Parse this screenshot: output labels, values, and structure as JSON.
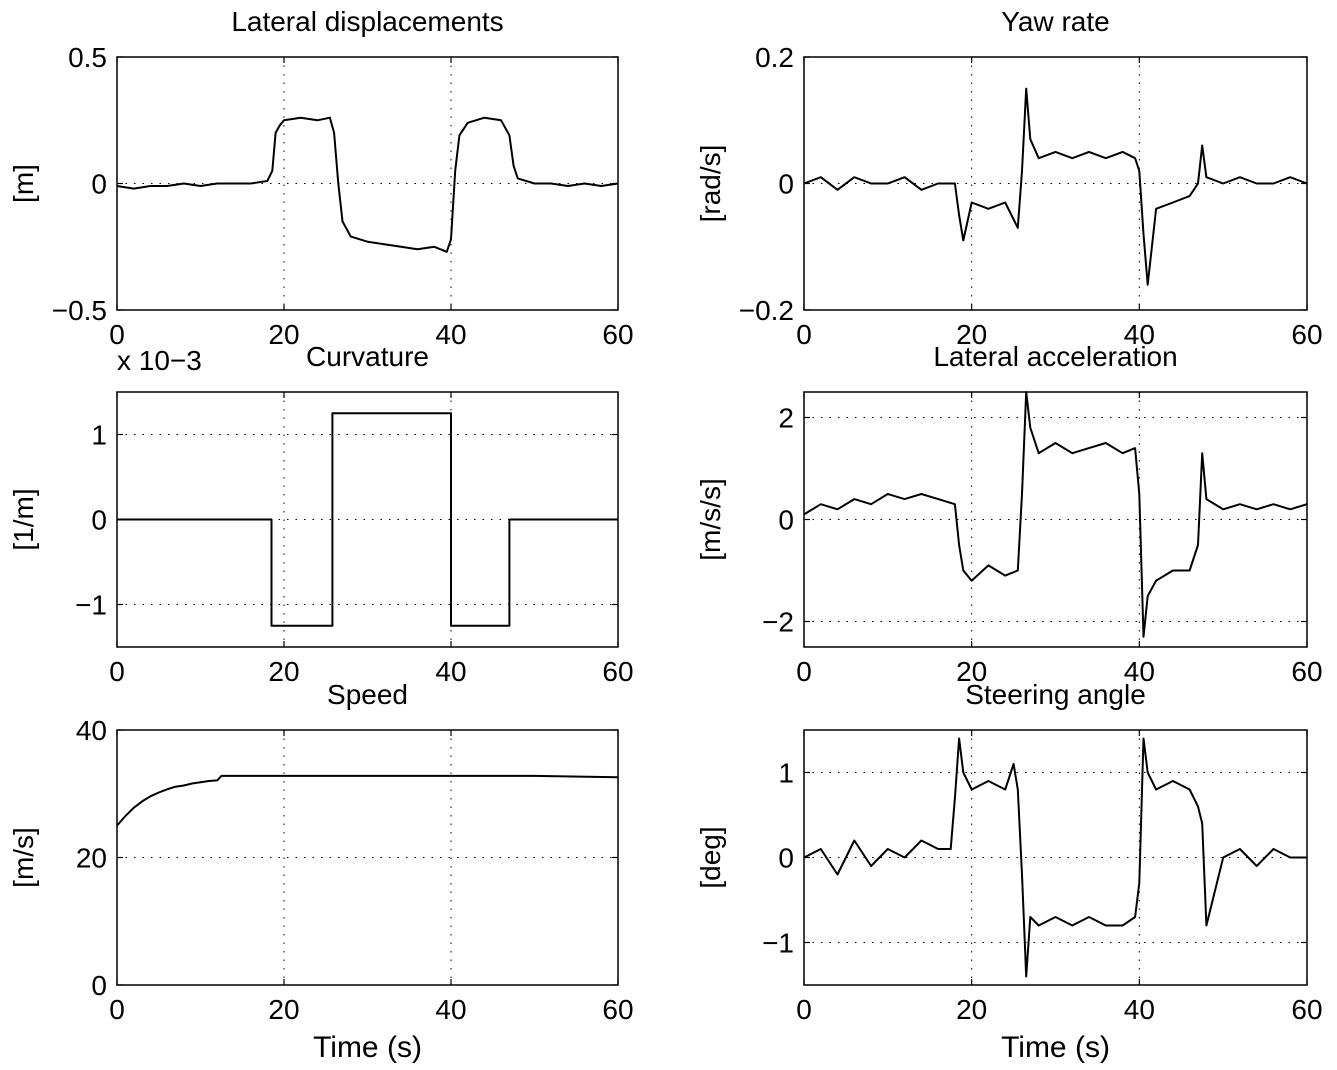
{
  "chart_data": [
    {
      "type": "line",
      "title": "Lateral displacements",
      "ylabel": "[m]",
      "xlabel": "",
      "xlim": [
        0,
        60
      ],
      "ylim": [
        -0.5,
        0.5
      ],
      "xticks": [
        0,
        20,
        40,
        60
      ],
      "yticks": [
        -0.5,
        0,
        0.5
      ],
      "xtick_labels": [
        "0",
        "20",
        "40",
        "60"
      ],
      "ytick_labels": [
        "−0.5",
        "0",
        "0.5"
      ],
      "grid": "partial dotted",
      "series": [
        {
          "x": [
            0,
            2,
            4,
            6,
            8,
            10,
            12,
            14,
            16,
            18,
            18.6,
            19,
            19.5,
            20,
            22,
            24,
            25.5,
            26,
            26.5,
            27,
            28,
            30,
            32,
            34,
            36,
            38,
            39.5,
            40,
            40.5,
            41,
            42,
            44,
            46,
            47,
            47.5,
            48,
            50,
            52,
            54,
            56,
            58,
            60
          ],
          "y": [
            -0.01,
            -0.02,
            -0.01,
            -0.01,
            0.0,
            -0.01,
            0.0,
            0.0,
            0.0,
            0.01,
            0.05,
            0.2,
            0.23,
            0.25,
            0.26,
            0.25,
            0.26,
            0.2,
            0.0,
            -0.15,
            -0.21,
            -0.23,
            -0.24,
            -0.25,
            -0.26,
            -0.25,
            -0.27,
            -0.22,
            0.05,
            0.19,
            0.24,
            0.26,
            0.25,
            0.19,
            0.07,
            0.02,
            0.0,
            0.0,
            -0.01,
            0.0,
            -0.01,
            0.0
          ]
        }
      ]
    },
    {
      "type": "line",
      "title": "Yaw rate",
      "ylabel": "[rad/s]",
      "xlabel": "",
      "xlim": [
        0,
        60
      ],
      "ylim": [
        -0.2,
        0.2
      ],
      "xticks": [
        0,
        20,
        40,
        60
      ],
      "yticks": [
        -0.2,
        0,
        0.2
      ],
      "xtick_labels": [
        "0",
        "20",
        "40",
        "60"
      ],
      "ytick_labels": [
        "−0.2",
        "0",
        "0.2"
      ],
      "grid": "dotted",
      "series": [
        {
          "x": [
            0,
            2,
            4,
            6,
            8,
            10,
            12,
            14,
            16,
            18,
            18.5,
            19,
            20,
            22,
            24,
            25.5,
            26,
            26.5,
            27,
            28,
            30,
            32,
            34,
            36,
            38,
            39.5,
            40,
            40.5,
            41,
            42,
            44,
            46,
            47,
            47.5,
            48,
            50,
            52,
            54,
            56,
            58,
            60
          ],
          "y": [
            0.0,
            0.01,
            -0.01,
            0.01,
            0.0,
            0.0,
            0.01,
            -0.01,
            0.0,
            0.0,
            -0.05,
            -0.09,
            -0.03,
            -0.04,
            -0.03,
            -0.07,
            0.02,
            0.15,
            0.07,
            0.04,
            0.05,
            0.04,
            0.05,
            0.04,
            0.05,
            0.04,
            0.02,
            -0.08,
            -0.16,
            -0.04,
            -0.03,
            -0.02,
            0.0,
            0.06,
            0.01,
            0.0,
            0.01,
            0.0,
            0.0,
            0.01,
            0.0
          ]
        }
      ]
    },
    {
      "type": "line",
      "title": "Curvature",
      "scale_note": "x 10−3",
      "ylabel": "[1/m]",
      "xlabel": "",
      "xlim": [
        0,
        60
      ],
      "ylim": [
        -1.5,
        1.5
      ],
      "xticks": [
        0,
        20,
        40,
        60
      ],
      "yticks": [
        -1,
        0,
        1
      ],
      "xtick_labels": [
        "0",
        "20",
        "40",
        "60"
      ],
      "ytick_labels": [
        "−1",
        "0",
        "1"
      ],
      "grid": "dotted",
      "series": [
        {
          "x": [
            0,
            18.5,
            18.5,
            25.8,
            25.8,
            40,
            40,
            47,
            47,
            60
          ],
          "y": [
            0,
            0,
            -1.25,
            -1.25,
            1.25,
            1.25,
            -1.25,
            -1.25,
            0,
            0
          ]
        }
      ]
    },
    {
      "type": "line",
      "title": "Lateral acceleration",
      "ylabel": "[m/s/s]",
      "xlabel": "",
      "xlim": [
        0,
        60
      ],
      "ylim": [
        -2.5,
        2.5
      ],
      "xticks": [
        0,
        20,
        40,
        60
      ],
      "yticks": [
        -2,
        0,
        2
      ],
      "xtick_labels": [
        "0",
        "20",
        "40",
        "60"
      ],
      "ytick_labels": [
        "−2",
        "0",
        "2"
      ],
      "grid": "dotted",
      "series": [
        {
          "x": [
            0,
            2,
            4,
            6,
            8,
            10,
            12,
            14,
            16,
            18,
            18.5,
            19,
            20,
            22,
            24,
            25.5,
            26,
            26.5,
            27,
            28,
            30,
            32,
            34,
            36,
            38,
            39.5,
            40,
            40.5,
            41,
            42,
            44,
            46,
            47,
            47.5,
            48,
            50,
            52,
            54,
            56,
            58,
            60
          ],
          "y": [
            0.1,
            0.3,
            0.2,
            0.4,
            0.3,
            0.5,
            0.4,
            0.5,
            0.4,
            0.3,
            -0.5,
            -1.0,
            -1.2,
            -0.9,
            -1.1,
            -1.0,
            0.5,
            2.5,
            1.8,
            1.3,
            1.5,
            1.3,
            1.4,
            1.5,
            1.3,
            1.4,
            0.5,
            -2.3,
            -1.5,
            -1.2,
            -1.0,
            -1.0,
            -0.5,
            1.3,
            0.4,
            0.2,
            0.3,
            0.2,
            0.3,
            0.2,
            0.3
          ]
        }
      ]
    },
    {
      "type": "line",
      "title": "Speed",
      "ylabel": "[m/s]",
      "xlabel": "Time (s)",
      "xlim": [
        0,
        60
      ],
      "ylim": [
        0,
        40
      ],
      "xticks": [
        0,
        20,
        40,
        60
      ],
      "yticks": [
        0,
        20,
        40
      ],
      "xtick_labels": [
        "0",
        "20",
        "40",
        "60"
      ],
      "ytick_labels": [
        "0",
        "20",
        "40"
      ],
      "grid": "partial dotted",
      "series": [
        {
          "x": [
            0,
            1,
            2,
            3,
            4,
            5,
            6,
            7,
            8,
            9,
            10,
            11,
            12,
            12.5,
            20,
            30,
            40,
            50,
            60
          ],
          "y": [
            25,
            26.5,
            27.8,
            28.8,
            29.6,
            30.2,
            30.7,
            31.1,
            31.3,
            31.6,
            31.8,
            32.0,
            32.1,
            32.8,
            32.8,
            32.8,
            32.8,
            32.8,
            32.6
          ]
        }
      ]
    },
    {
      "type": "line",
      "title": "Steering angle",
      "ylabel": "[deg]",
      "xlabel": "Time (s)",
      "xlim": [
        0,
        60
      ],
      "ylim": [
        -1.5,
        1.5
      ],
      "xticks": [
        0,
        20,
        40,
        60
      ],
      "yticks": [
        -1,
        0,
        1
      ],
      "xtick_labels": [
        "0",
        "20",
        "40",
        "60"
      ],
      "ytick_labels": [
        "−1",
        "0",
        "1"
      ],
      "grid": "dotted",
      "series": [
        {
          "x": [
            0,
            2,
            4,
            6,
            8,
            10,
            12,
            14,
            16,
            17.5,
            18,
            18.5,
            19,
            20,
            22,
            24,
            25,
            25.5,
            26,
            26.5,
            27,
            28,
            30,
            32,
            34,
            36,
            38,
            39.5,
            40,
            40.5,
            41,
            42,
            44,
            46,
            47,
            47.5,
            48,
            50,
            52,
            54,
            56,
            58,
            60
          ],
          "y": [
            0.0,
            0.1,
            -0.2,
            0.2,
            -0.1,
            0.1,
            0.0,
            0.2,
            0.1,
            0.1,
            0.7,
            1.4,
            1.0,
            0.8,
            0.9,
            0.8,
            1.1,
            0.8,
            -0.2,
            -1.4,
            -0.7,
            -0.8,
            -0.7,
            -0.8,
            -0.7,
            -0.8,
            -0.8,
            -0.7,
            -0.3,
            1.4,
            1.0,
            0.8,
            0.9,
            0.8,
            0.6,
            0.4,
            -0.8,
            0.0,
            0.1,
            -0.1,
            0.1,
            0.0,
            0.0
          ]
        }
      ]
    }
  ]
}
